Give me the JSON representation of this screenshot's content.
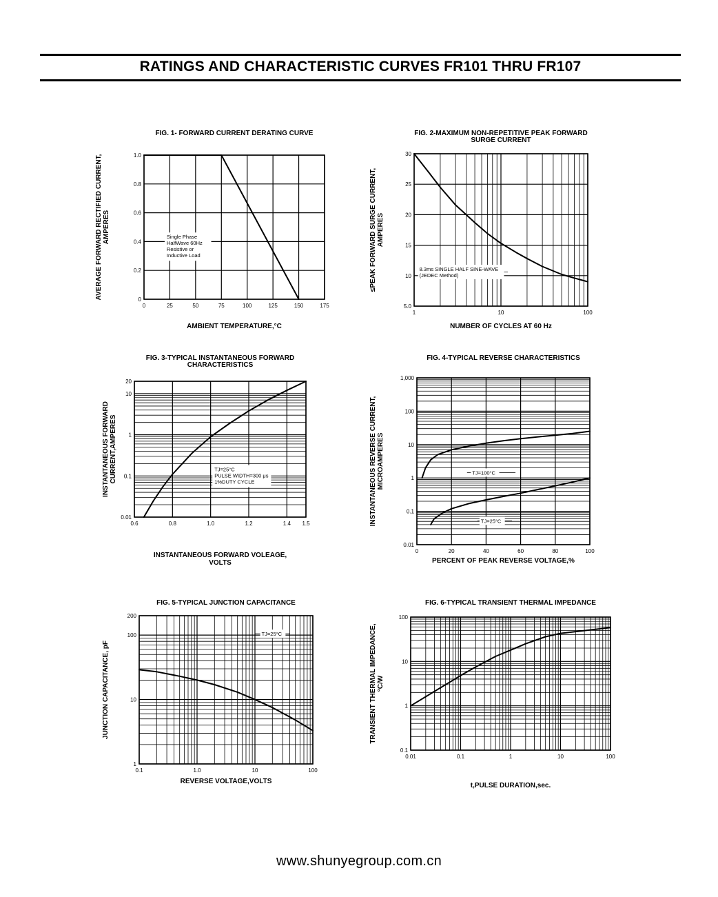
{
  "page": {
    "title": "RATINGS AND CHARACTERISTIC CURVES FR101 THRU FR107",
    "footer": "www.shunyegroup.com.cn"
  },
  "chart_data": [
    {
      "id": "fig1",
      "type": "line",
      "title_lines": [
        "FIG. 1- FORWARD CURRENT DERATING CURVE"
      ],
      "xlabel_lines": [
        "AMBIENT TEMPERATURE,°C"
      ],
      "ylabel_lines": [
        "AVERAGE FORWARD RECTIFIED CURRENT,",
        "AMPERES"
      ],
      "xscale": "linear",
      "yscale": "linear",
      "xlim": [
        0,
        175
      ],
      "ylim": [
        0,
        1.0
      ],
      "xticks": [
        0,
        25,
        50,
        75,
        100,
        125,
        150,
        175
      ],
      "xtick_labels": [
        "0",
        "25",
        "50",
        "75",
        "100",
        "125",
        "150",
        "175"
      ],
      "yticks": [
        0,
        0.2,
        0.4,
        0.6,
        0.8,
        1.0
      ],
      "ytick_labels": [
        "0",
        "0.2",
        "0.4",
        "0.6",
        "0.8",
        "1.0"
      ],
      "grid": "major",
      "series": [
        {
          "x": [
            0,
            75,
            150
          ],
          "y": [
            1.0,
            1.0,
            0
          ]
        }
      ],
      "annotations": [
        {
          "lines": [
            "Single Phase",
            "HalfWave 60Hz",
            "Resistive or",
            "Inductive Load"
          ],
          "x": 22,
          "y": 0.42
        }
      ]
    },
    {
      "id": "fig2",
      "type": "line",
      "title_lines": [
        "FIG. 2-MAXIMUM NON-REPETITIVE PEAK FORWARD",
        "SURGE CURRENT"
      ],
      "xlabel_lines": [
        "NUMBER OF CYCLES AT 60 Hz"
      ],
      "ylabel_lines": [
        "≤PEAK FORWARD SURGE CURRENT,",
        "AMPERES"
      ],
      "xscale": "log",
      "yscale": "linear",
      "xlim": [
        1,
        100
      ],
      "ylim": [
        5,
        30
      ],
      "xticks": [
        1,
        10,
        100
      ],
      "xtick_labels": [
        "1",
        "10",
        "100"
      ],
      "yticks": [
        5,
        10,
        15,
        20,
        25,
        30
      ],
      "ytick_labels": [
        "5.0",
        "10",
        "15",
        "20",
        "25",
        "30"
      ],
      "grid": "log-minor-x",
      "series": [
        {
          "x": [
            1,
            1.5,
            2,
            3,
            5,
            7,
            10,
            15,
            20,
            30,
            50,
            70,
            100
          ],
          "y": [
            30,
            26.8,
            24.5,
            21.6,
            18.7,
            16.9,
            15.3,
            13.8,
            12.8,
            11.5,
            10.2,
            9.6,
            9
          ]
        }
      ],
      "annotations": [
        {
          "lines": [
            "8.3ms SINGLE HALF SINE-WAVE",
            "(JEDEC Method)"
          ],
          "x": 1.15,
          "y": 10.6,
          "leader_to": 12
        }
      ]
    },
    {
      "id": "fig3",
      "type": "line",
      "title_lines": [
        "FIG. 3-TYPICAL INSTANTANEOUS FORWARD",
        "CHARACTERISTICS"
      ],
      "xlabel_lines": [
        "INSTANTANEOUS FORWARD VOLEAGE,",
        "VOLTS"
      ],
      "ylabel_lines": [
        "INSTANTANEOUS FORWARD",
        "CURRENT,AMPERES"
      ],
      "xscale": "linear",
      "yscale": "log",
      "xlim": [
        0.6,
        1.5
      ],
      "ylim": [
        0.01,
        20
      ],
      "xticks": [
        0.6,
        0.8,
        1.0,
        1.2,
        1.4,
        1.5
      ],
      "xtick_labels": [
        "0.6",
        "0.8",
        "1.0",
        "1.2",
        "1.4",
        "1.5"
      ],
      "yticks": [
        0.01,
        0.1,
        1,
        10,
        20
      ],
      "ytick_labels": [
        "0.01",
        "0.1",
        "1",
        "10",
        "20"
      ],
      "grid": "log-minor-y",
      "series": [
        {
          "x": [
            0.65,
            0.7,
            0.75,
            0.8,
            0.9,
            1.0,
            1.1,
            1.2,
            1.3,
            1.4,
            1.5
          ],
          "y": [
            0.01,
            0.025,
            0.055,
            0.11,
            0.35,
            0.9,
            1.9,
            3.8,
            7,
            12,
            20
          ]
        }
      ],
      "annotations": [
        {
          "lines": [
            "TJ=25°C",
            "PULSE WIDTH=300 μs",
            "1%DUTY CYCLE"
          ],
          "x": 1.02,
          "y": 0.13
        }
      ]
    },
    {
      "id": "fig4",
      "type": "line",
      "title_lines": [
        "FIG. 4-TYPICAL REVERSE CHARACTERISTICS"
      ],
      "xlabel_lines": [
        "PERCENT OF PEAK REVERSE VOLTAGE,%"
      ],
      "ylabel_lines": [
        "INSTANTANEOUS REVERSE CURRENT,",
        "MICROAMPERES"
      ],
      "xscale": "linear",
      "yscale": "log",
      "xlim": [
        0,
        100
      ],
      "ylim": [
        0.01,
        1000
      ],
      "xticks": [
        0,
        20,
        40,
        60,
        80,
        100
      ],
      "xtick_labels": [
        "0",
        "20",
        "40",
        "60",
        "80",
        "100"
      ],
      "yticks": [
        0.01,
        0.1,
        1,
        10,
        100,
        1000
      ],
      "ytick_labels": [
        "0.01",
        "0.1",
        "1",
        "10",
        "100",
        "1,000"
      ],
      "grid": "log-minor-y",
      "series": [
        {
          "name": "TJ=100°C",
          "x": [
            3,
            5,
            8,
            12,
            20,
            30,
            40,
            50,
            60,
            70,
            80,
            90,
            100
          ],
          "y": [
            1,
            2,
            3.5,
            5,
            7,
            9,
            11,
            13,
            15,
            17,
            19,
            21.5,
            25
          ]
        },
        {
          "name": "TJ=25°C",
          "x": [
            8,
            10,
            15,
            20,
            30,
            40,
            50,
            60,
            70,
            80,
            90,
            100
          ],
          "y": [
            0.04,
            0.06,
            0.09,
            0.12,
            0.17,
            0.22,
            0.28,
            0.35,
            0.45,
            0.58,
            0.75,
            1
          ]
        }
      ],
      "annotations": [
        {
          "lines": [
            "TJ=100°C"
          ],
          "x": 32,
          "y": 1.45,
          "leader_from": 29,
          "leader_to": 57
        },
        {
          "lines": [
            "TJ=25°C"
          ],
          "x": 37,
          "y": 0.052,
          "leader_from": 35,
          "leader_to": 55
        }
      ]
    },
    {
      "id": "fig5",
      "type": "line",
      "title_lines": [
        "FIG. 5-TYPICAL JUNCTION CAPACITANCE"
      ],
      "xlabel_lines": [
        "REVERSE VOLTAGE,VOLTS"
      ],
      "ylabel_lines": [
        "JUNCTION CAPACITANCE, pF"
      ],
      "xscale": "log",
      "yscale": "log",
      "xlim": [
        0.1,
        100
      ],
      "ylim": [
        1,
        200
      ],
      "xticks": [
        0.1,
        1,
        10,
        100
      ],
      "xtick_labels": [
        "0.1",
        "1.0",
        "10",
        "100"
      ],
      "yticks": [
        1,
        10,
        100,
        200
      ],
      "ytick_labels": [
        "1",
        "10",
        "100",
        "200"
      ],
      "grid": "log-minor-xy",
      "series": [
        {
          "x": [
            0.1,
            0.2,
            0.5,
            1,
            2,
            5,
            10,
            20,
            50,
            100
          ],
          "y": [
            29,
            27,
            23,
            20,
            17,
            13,
            10,
            7.5,
            4.8,
            3.3
          ]
        }
      ],
      "annotations": [
        {
          "lines": [
            "TJ=25°C"
          ],
          "x": 13,
          "y": 105,
          "leader_from": 10,
          "leader_to": 40
        }
      ]
    },
    {
      "id": "fig6",
      "type": "line",
      "title_lines": [
        "FIG. 6-TYPICAL TRANSIENT THERMAL IMPEDANCE"
      ],
      "xlabel_lines": [
        "t,PULSE DURATION,sec."
      ],
      "ylabel_lines": [
        "TRANSIENT THERMAL IMPEDANCE,",
        "°C/W"
      ],
      "xscale": "log",
      "yscale": "log",
      "xlim": [
        0.01,
        100
      ],
      "ylim": [
        0.1,
        100
      ],
      "xticks": [
        0.01,
        0.1,
        1,
        10,
        100
      ],
      "xtick_labels": [
        "0.01",
        "0.1",
        "1",
        "10",
        "100"
      ],
      "yticks": [
        0.1,
        1,
        10,
        100
      ],
      "ytick_labels": [
        "0.1",
        "1",
        "10",
        "100"
      ],
      "grid": "log-minor-xy",
      "series": [
        {
          "x": [
            0.01,
            0.02,
            0.05,
            0.1,
            0.2,
            0.5,
            1,
            2,
            5,
            10,
            20,
            50,
            100
          ],
          "y": [
            1,
            1.6,
            3,
            4.8,
            7.5,
            13,
            18,
            25,
            36,
            43,
            47,
            53,
            58
          ]
        }
      ],
      "annotations": []
    }
  ]
}
